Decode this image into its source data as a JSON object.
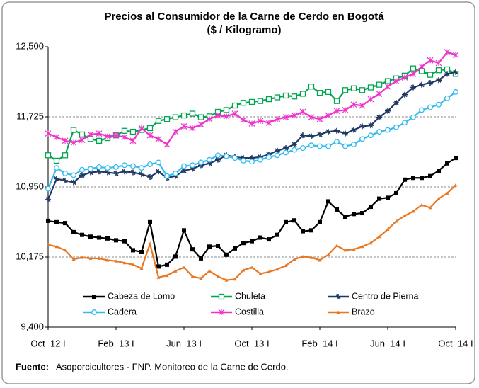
{
  "chart_data": {
    "type": "line",
    "title": "Precios al Consumidor de la Carne de Cerdo en Bogotá",
    "subtitle": "($ / Kilogramo)",
    "source_label": "Fuente:",
    "source_text": "Asoporcicultores - FNP. Monitoreo de la Carne de Cerdo.",
    "categories": [
      "Oct_12 I",
      null,
      null,
      null,
      null,
      null,
      null,
      null,
      "Feb_13 I",
      null,
      null,
      null,
      null,
      null,
      null,
      null,
      "Jun_13 I",
      null,
      null,
      null,
      null,
      null,
      null,
      null,
      "Oct_13 I",
      null,
      null,
      null,
      null,
      null,
      null,
      null,
      "Feb_14 I",
      null,
      null,
      null,
      null,
      null,
      null,
      null,
      "Jun_14 I",
      null,
      null,
      null,
      null,
      null,
      null,
      null,
      "Oct_14 I"
    ],
    "ylim": [
      9400,
      12500
    ],
    "yticks": [
      {
        "value": 9400,
        "label": "9,400"
      },
      {
        "value": 10175,
        "label": "10,175"
      },
      {
        "value": 10950,
        "label": "10,950"
      },
      {
        "value": 11725,
        "label": "11,725"
      },
      {
        "value": 12500,
        "label": "12,500"
      }
    ],
    "grid": true,
    "series": [
      {
        "name": "Cabeza de Lomo",
        "color": "#000000",
        "marker": "square-filled",
        "values": [
          10575,
          10560,
          10550,
          10450,
          10420,
          10400,
          10390,
          10380,
          10360,
          10350,
          10250,
          10230,
          10560,
          10070,
          10090,
          10180,
          10470,
          10260,
          10160,
          10290,
          10300,
          10200,
          10270,
          10330,
          10350,
          10390,
          10370,
          10420,
          10560,
          10580,
          10460,
          10470,
          10560,
          10790,
          10700,
          10620,
          10650,
          10660,
          10730,
          10820,
          10830,
          10880,
          11030,
          11050,
          11050,
          11070,
          11130,
          11210,
          11270
        ]
      },
      {
        "name": "Chuleta",
        "color": "#00a550",
        "marker": "square-open",
        "values": [
          11300,
          11240,
          11300,
          11580,
          11530,
          11480,
          11460,
          11490,
          11520,
          11570,
          11560,
          11580,
          11600,
          11680,
          11700,
          11720,
          11740,
          11760,
          11720,
          11730,
          11780,
          11800,
          11850,
          11880,
          11890,
          11900,
          11920,
          11940,
          11960,
          11950,
          11980,
          12060,
          11990,
          12000,
          11900,
          12020,
          12040,
          12020,
          12050,
          12080,
          12120,
          12150,
          12180,
          12260,
          12230,
          12190,
          12240,
          12250,
          12200
        ]
      },
      {
        "name": "Centro de Pierna",
        "color": "#1f3864",
        "marker": "cross",
        "values": [
          10810,
          11040,
          11020,
          11000,
          11080,
          11110,
          11120,
          11110,
          11100,
          11120,
          11110,
          11090,
          11060,
          11120,
          11050,
          11070,
          11130,
          11150,
          11190,
          11210,
          11250,
          11300,
          11280,
          11270,
          11270,
          11280,
          11310,
          11350,
          11380,
          11420,
          11520,
          11510,
          11530,
          11560,
          11570,
          11540,
          11580,
          11620,
          11630,
          11720,
          11790,
          11880,
          11970,
          12050,
          12080,
          12100,
          12130,
          12200,
          12220
        ]
      },
      {
        "name": "Cadera",
        "color": "#33bbee",
        "marker": "circle-open",
        "values": [
          10930,
          11160,
          11100,
          11080,
          11140,
          11150,
          11170,
          11160,
          11170,
          11190,
          11180,
          11160,
          11200,
          11220,
          11070,
          11100,
          11180,
          11190,
          11220,
          11250,
          11300,
          11290,
          11270,
          11240,
          11230,
          11250,
          11280,
          11300,
          11330,
          11360,
          11380,
          11410,
          11400,
          11400,
          11450,
          11400,
          11420,
          11480,
          11520,
          11560,
          11580,
          11610,
          11660,
          11720,
          11800,
          11830,
          11860,
          11930,
          12000
        ]
      },
      {
        "name": "Costilla",
        "color": "#ee33cc",
        "marker": "star",
        "values": [
          11540,
          11500,
          11460,
          11440,
          11470,
          11530,
          11540,
          11510,
          11520,
          11500,
          11460,
          11600,
          11520,
          11480,
          11420,
          11560,
          11620,
          11600,
          11640,
          11700,
          11740,
          11730,
          11760,
          11690,
          11650,
          11680,
          11660,
          11700,
          11720,
          11740,
          11780,
          11720,
          11700,
          11740,
          11790,
          11800,
          11860,
          11850,
          11920,
          11980,
          12060,
          12120,
          12160,
          12200,
          12280,
          12350,
          12320,
          12440,
          12410
        ]
      },
      {
        "name": "Brazo",
        "color": "#e87722",
        "marker": "triangle",
        "values": [
          10310,
          10290,
          10250,
          10150,
          10170,
          10160,
          10160,
          10140,
          10130,
          10110,
          10090,
          10050,
          10320,
          9950,
          9970,
          10020,
          10060,
          9960,
          9940,
          10020,
          9960,
          9920,
          9930,
          10030,
          10060,
          9990,
          10010,
          10040,
          10080,
          10150,
          10180,
          10170,
          10140,
          10200,
          10300,
          10250,
          10260,
          10290,
          10330,
          10400,
          10480,
          10570,
          10630,
          10680,
          10750,
          10720,
          10820,
          10880,
          10970
        ]
      }
    ]
  }
}
